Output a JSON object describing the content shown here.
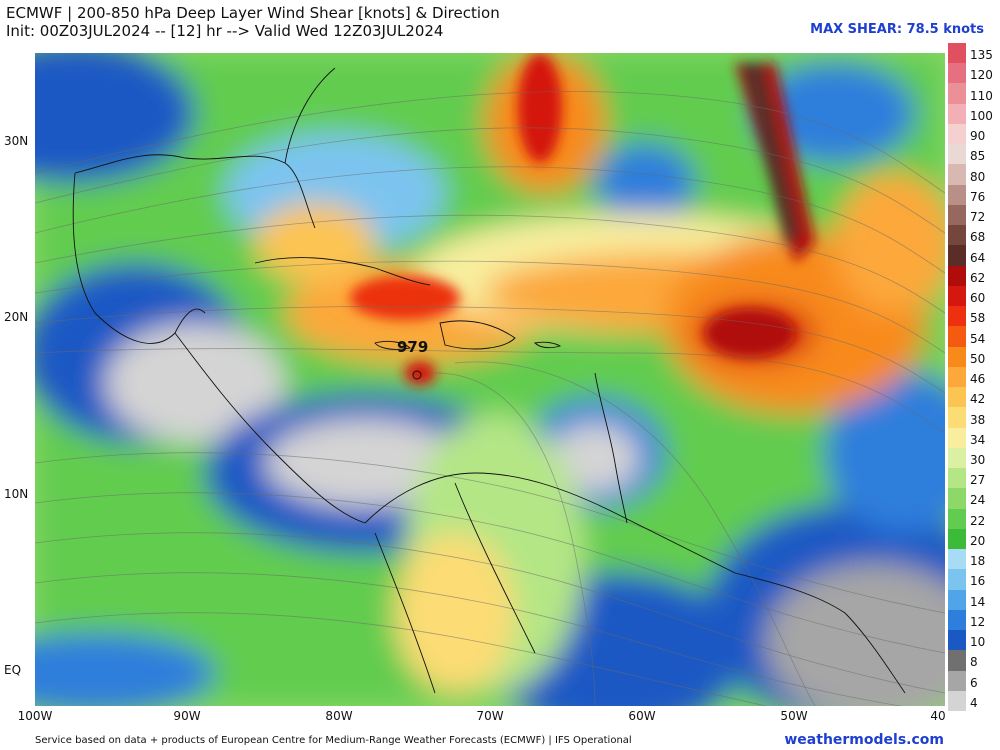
{
  "title": {
    "line1": "ECMWF | 200-850 hPa Deep Layer Wind Shear [knots] & Direction",
    "line2": "Init: 00Z03JUL2024 -- [12] hr --> Valid Wed 12Z03JUL2024"
  },
  "max_shear": "MAX SHEAR: 78.5 knots",
  "storm_pressure": "979",
  "lat_labels": [
    "30N",
    "20N",
    "10N",
    "EQ"
  ],
  "lon_labels": [
    "100W",
    "90W",
    "80W",
    "70W",
    "60W",
    "50W",
    "40"
  ],
  "colorbar": {
    "labels": [
      "135",
      "120",
      "110",
      "100",
      "90",
      "85",
      "80",
      "76",
      "72",
      "68",
      "64",
      "62",
      "60",
      "58",
      "54",
      "50",
      "46",
      "42",
      "38",
      "34",
      "30",
      "27",
      "24",
      "22",
      "20",
      "18",
      "16",
      "14",
      "12",
      "10",
      "8",
      "6",
      "4"
    ],
    "colors": [
      "#e05060",
      "#e67080",
      "#ec9098",
      "#f2b0b6",
      "#f4d0d0",
      "#ead8d4",
      "#d8b8b0",
      "#b89088",
      "#96685e",
      "#74463c",
      "#5a2e26",
      "#b00c0c",
      "#d41810",
      "#ec3010",
      "#f45a10",
      "#f88a1c",
      "#fca83a",
      "#fcc452",
      "#fcdc74",
      "#f8ee9e",
      "#dcf0a4",
      "#b4e686",
      "#8ed86a",
      "#62cc50",
      "#3cba3a",
      "#a8dcf4",
      "#7cc4f0",
      "#50a4e8",
      "#2e7edc",
      "#1a58c4",
      "#707070",
      "#a6a6a6",
      "#d4d4d4"
    ]
  },
  "footer": "Service based on data + products of European Centre for Medium-Range Weather Forecasts (ECMWF) | IFS Operational",
  "site": "weathermodels.com",
  "icons": [
    "storm-center-marker"
  ]
}
